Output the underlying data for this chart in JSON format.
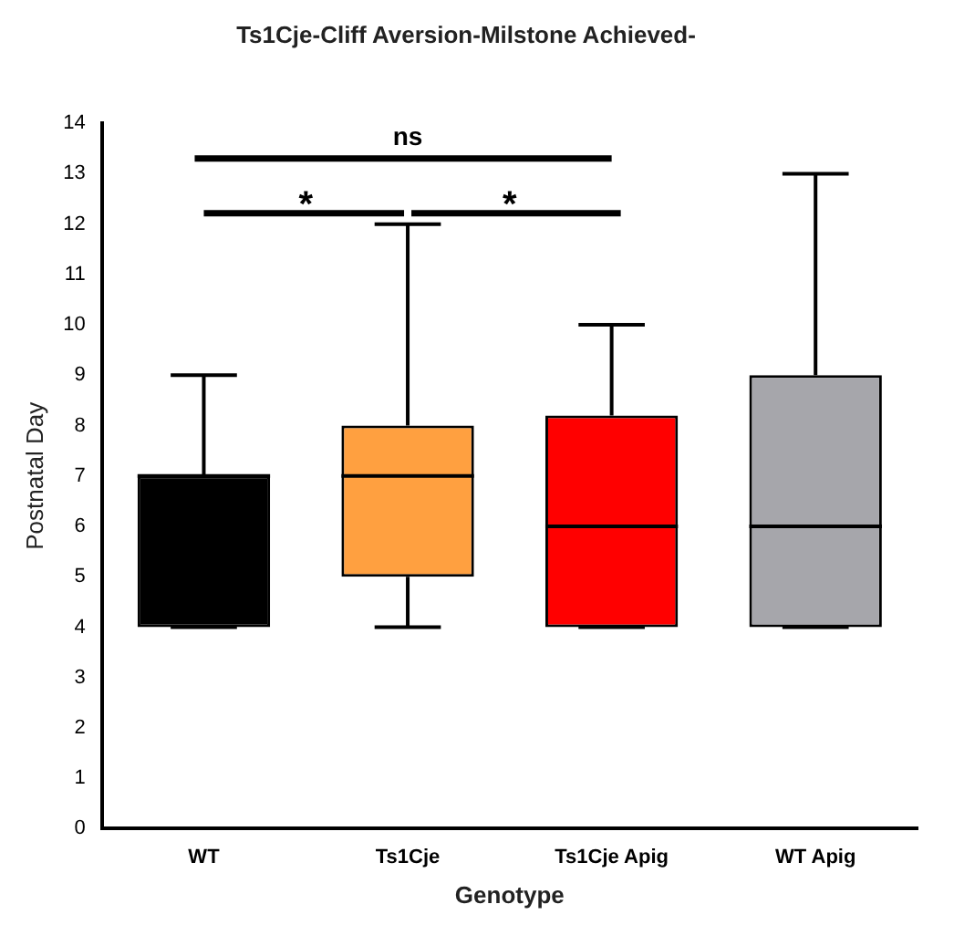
{
  "chart_data": {
    "type": "box",
    "title": "Ts1Cje-Cliff Aversion-Milstone Achieved-",
    "xlabel": "Genotype",
    "ylabel": "Postnatal Day",
    "categories": [
      "WT",
      "Ts1Cje",
      "Ts1Cje Apig",
      "WT Apig"
    ],
    "colors": [
      "#000000",
      "#ffa040",
      "#ff0000",
      "#a6a6ab"
    ],
    "boxes": [
      {
        "low": 4,
        "q1": 4,
        "median": 7,
        "q3": 7,
        "high": 9
      },
      {
        "low": 4,
        "q1": 5,
        "median": 7,
        "q3": 8,
        "high": 12
      },
      {
        "low": 4,
        "q1": 4,
        "median": 6,
        "q3": 8.2,
        "high": 10
      },
      {
        "low": 4,
        "q1": 4,
        "median": 6,
        "q3": 9,
        "high": 13
      }
    ],
    "ylim": [
      0,
      14
    ],
    "yticks": [
      0,
      1,
      2,
      3,
      4,
      5,
      6,
      7,
      8,
      9,
      10,
      11,
      12,
      13,
      14
    ],
    "grid": false,
    "legend": false,
    "annotations": [
      "ns",
      "*",
      "*"
    ]
  }
}
